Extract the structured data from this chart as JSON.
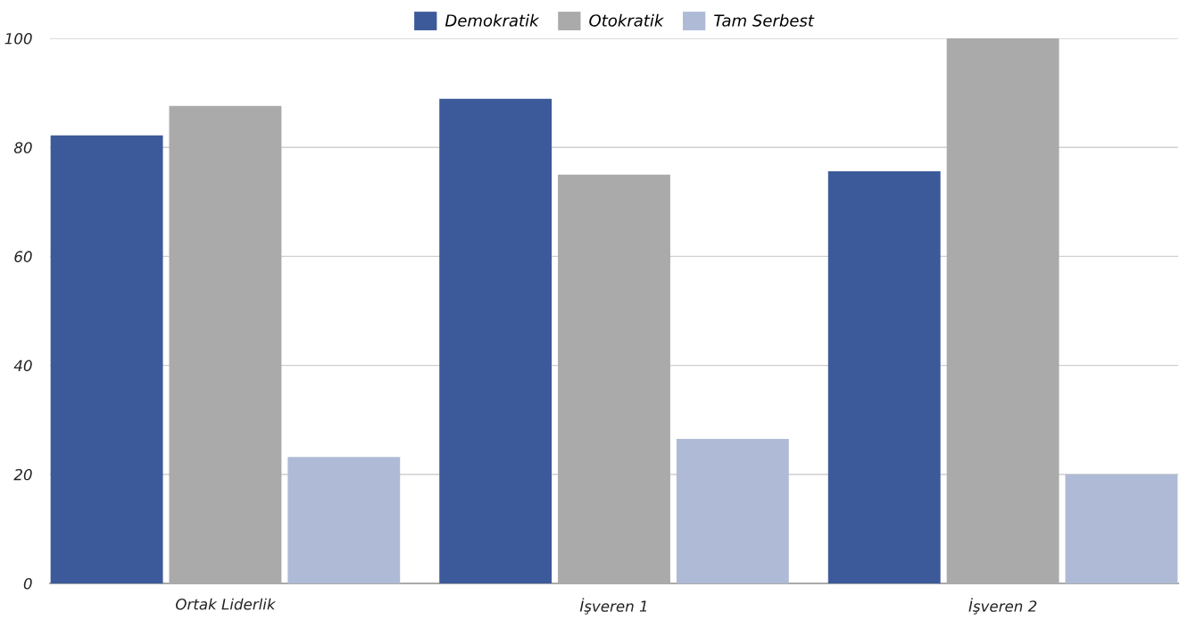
{
  "chart_data": {
    "type": "bar",
    "categories": [
      "Ortak Liderlik",
      "İşveren 1",
      "İşveren 2"
    ],
    "series": [
      {
        "name": "Demokratik",
        "color": "#3c5a99",
        "values": [
          82.2,
          88.9,
          75.6
        ]
      },
      {
        "name": "Otokratik",
        "color": "#aaaaaa",
        "values": [
          87.6,
          75.0,
          100
        ]
      },
      {
        "name": "Tam Serbest",
        "color": "#afbbd6",
        "values": [
          23.2,
          26.5,
          20.0
        ]
      }
    ],
    "ylim": [
      0,
      100
    ],
    "yticks": [
      0,
      20,
      40,
      60,
      80,
      100
    ],
    "grid": "y",
    "legend": "top"
  }
}
